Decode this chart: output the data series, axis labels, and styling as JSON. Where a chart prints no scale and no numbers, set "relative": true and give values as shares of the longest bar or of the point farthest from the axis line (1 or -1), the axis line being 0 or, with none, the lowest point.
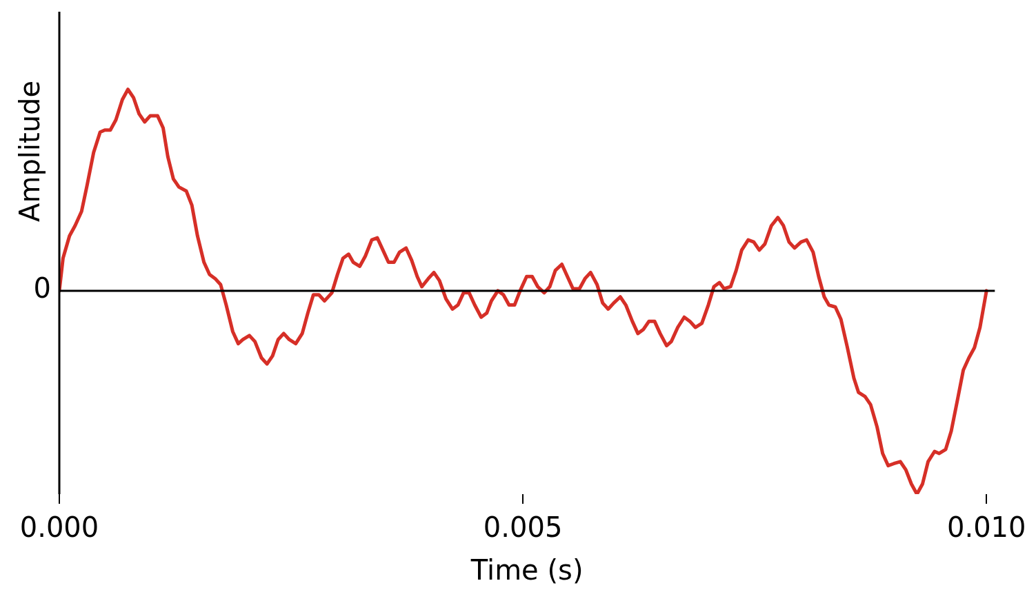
{
  "chart_data": {
    "type": "line",
    "xlabel": "Time (s)",
    "ylabel": "Amplitude",
    "relative": true,
    "legend": false,
    "grid": false,
    "xlim": [
      0,
      0.01009
    ],
    "xticks": [
      {
        "value": 0,
        "label": "0.000"
      },
      {
        "value": 0.005,
        "label": "0.005"
      },
      {
        "value": 0.01,
        "label": "0.010"
      }
    ],
    "annotations": [
      {
        "text": "0",
        "x": 0,
        "y": 0
      }
    ],
    "series": [
      {
        "color": "#d62f27",
        "x": [
          0,
          4e-05,
          0.00011,
          0.00017,
          0.00024,
          0.0003,
          0.00037,
          0.00044,
          0.00049,
          0.00055,
          0.00061,
          0.00068,
          0.00074,
          0.0008,
          0.00086,
          0.00092,
          0.00098,
          0.00106,
          0.00112,
          0.00117,
          0.00123,
          0.00129,
          0.00137,
          0.00143,
          0.00149,
          0.00156,
          0.00162,
          0.00168,
          0.00174,
          0.0018,
          0.00187,
          0.00193,
          0.00198,
          0.00205,
          0.00211,
          0.00218,
          0.00224,
          0.0023,
          0.00236,
          0.00242,
          0.00248,
          0.00255,
          0.00262,
          0.00268,
          0.00274,
          0.0028,
          0.00286,
          0.00294,
          0.003,
          0.00306,
          0.00312,
          0.00317,
          0.00324,
          0.0033,
          0.00337,
          0.00343,
          0.00349,
          0.00355,
          0.00361,
          0.00367,
          0.00374,
          0.0038,
          0.00386,
          0.00391,
          0.00398,
          0.00404,
          0.0041,
          0.00417,
          0.00424,
          0.0043,
          0.00436,
          0.00442,
          0.00448,
          0.00455,
          0.00461,
          0.00466,
          0.00473,
          0.00479,
          0.00485,
          0.00491,
          0.00497,
          0.00504,
          0.0051,
          0.00516,
          0.00523,
          0.00529,
          0.00535,
          0.00542,
          0.00548,
          0.00554,
          0.00561,
          0.00567,
          0.00573,
          0.0058,
          0.00586,
          0.00592,
          0.00598,
          0.00605,
          0.00611,
          0.00618,
          0.00624,
          0.0063,
          0.00636,
          0.00642,
          0.00648,
          0.00655,
          0.0066,
          0.00667,
          0.00674,
          0.0068,
          0.00686,
          0.00693,
          0.007,
          0.00706,
          0.00712,
          0.00717,
          0.00724,
          0.0073,
          0.00736,
          0.00743,
          0.00749,
          0.00755,
          0.00761,
          0.00768,
          0.00775,
          0.00781,
          0.00787,
          0.00793,
          0.008,
          0.00806,
          0.00813,
          0.00819,
          0.00825,
          0.0083,
          0.00837,
          0.00843,
          0.0085,
          0.00857,
          0.00862,
          0.00869,
          0.00875,
          0.00882,
          0.00888,
          0.00894,
          0.009,
          0.00907,
          0.00913,
          0.00919,
          0.00925,
          0.00931,
          0.00937,
          0.00944,
          0.00949,
          0.00956,
          0.00962,
          0.00969,
          0.00975,
          0.00981,
          0.00987,
          0.00993,
          0.01
        ],
        "values": [
          0,
          0.16,
          0.27,
          0.32,
          0.39,
          0.52,
          0.68,
          0.78,
          0.79,
          0.79,
          0.84,
          0.94,
          0.99,
          0.95,
          0.87,
          0.83,
          0.86,
          0.86,
          0.8,
          0.66,
          0.55,
          0.51,
          0.49,
          0.42,
          0.27,
          0.14,
          0.08,
          0.06,
          0.03,
          -0.07,
          -0.2,
          -0.26,
          -0.24,
          -0.22,
          -0.25,
          -0.33,
          -0.36,
          -0.32,
          -0.24,
          -0.21,
          -0.24,
          -0.26,
          -0.21,
          -0.11,
          -0.02,
          -0.02,
          -0.05,
          -0.01,
          0.08,
          0.16,
          0.18,
          0.14,
          0.12,
          0.17,
          0.25,
          0.26,
          0.2,
          0.14,
          0.14,
          0.19,
          0.21,
          0.15,
          0.07,
          0.02,
          0.06,
          0.09,
          0.05,
          -0.04,
          -0.09,
          -0.07,
          -0.01,
          -0.01,
          -0.07,
          -0.13,
          -0.11,
          -0.05,
          0,
          -0.02,
          -0.07,
          -0.07,
          0,
          0.07,
          0.07,
          0.02,
          -0.01,
          0.02,
          0.1,
          0.13,
          0.07,
          0.01,
          0.01,
          0.06,
          0.09,
          0.03,
          -0.06,
          -0.09,
          -0.06,
          -0.03,
          -0.07,
          -0.15,
          -0.21,
          -0.19,
          -0.15,
          -0.15,
          -0.21,
          -0.27,
          -0.25,
          -0.18,
          -0.13,
          -0.15,
          -0.18,
          -0.16,
          -0.07,
          0.02,
          0.04,
          0.01,
          0.02,
          0.1,
          0.2,
          0.25,
          0.24,
          0.2,
          0.23,
          0.32,
          0.36,
          0.32,
          0.24,
          0.21,
          0.24,
          0.25,
          0.19,
          0.07,
          -0.03,
          -0.07,
          -0.08,
          -0.14,
          -0.28,
          -0.43,
          -0.5,
          -0.52,
          -0.56,
          -0.67,
          -0.8,
          -0.86,
          -0.85,
          -0.84,
          -0.88,
          -0.95,
          -1,
          -0.95,
          -0.84,
          -0.79,
          -0.8,
          -0.78,
          -0.69,
          -0.53,
          -0.39,
          -0.33,
          -0.28,
          -0.18,
          0
        ]
      }
    ]
  }
}
